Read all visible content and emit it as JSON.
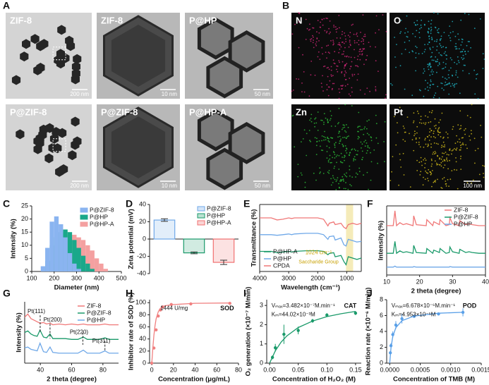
{
  "figure_a": {
    "panel": "A",
    "images": [
      {
        "label": "ZIF-8",
        "scale": "200 nm"
      },
      {
        "label": "ZIF-8",
        "scale": "10 nm"
      },
      {
        "label": "P@HP",
        "scale": "50 nm"
      },
      {
        "label": "P@ZIF-8",
        "scale": "200 nm"
      },
      {
        "label": "P@ZIF-8",
        "scale": "10 nm"
      },
      {
        "label": "P@HP-A",
        "scale": "50 nm"
      }
    ]
  },
  "figure_b": {
    "panel": "B",
    "images": [
      {
        "label": "N"
      },
      {
        "label": "O"
      },
      {
        "label": "Zn"
      },
      {
        "label": "Pt",
        "scale": "100 nm"
      }
    ]
  },
  "chart_data": [
    {
      "panel": "C",
      "type": "bar",
      "xlabel": "Diameter (nm)",
      "ylabel": "Intensity (%)",
      "x": [
        150,
        170,
        190,
        210,
        230,
        250,
        270,
        290,
        310,
        330,
        350,
        370,
        390,
        410,
        430
      ],
      "series": [
        {
          "name": "P@ZIF-8",
          "color": "#8ab4f0",
          "values": [
            2,
            9,
            19,
            21,
            18,
            13,
            7,
            3,
            1,
            null,
            null,
            null,
            null,
            null,
            null
          ]
        },
        {
          "name": "P@HP",
          "color": "#1aa88a",
          "values": [
            null,
            4,
            10,
            13,
            15,
            16,
            15,
            12,
            9,
            6,
            3,
            1,
            null,
            null,
            null
          ]
        },
        {
          "name": "P@HP-A",
          "color": "#f4a0a0",
          "values": [
            null,
            null,
            3,
            7,
            10,
            13,
            14,
            14,
            13,
            12,
            10,
            8,
            5,
            3,
            1
          ]
        }
      ],
      "xlim": [
        100,
        500
      ],
      "xticks": [
        100,
        200,
        300,
        400,
        500
      ],
      "ylim": [
        0,
        25
      ],
      "yticks": [
        0,
        5,
        10,
        15,
        20,
        25
      ],
      "legend": "upper right"
    },
    {
      "panel": "D",
      "type": "bar",
      "ylabel": "Zeta potential (mV)",
      "series": [
        {
          "name": "P@ZIF-8",
          "color": "#6fa8e8",
          "values": [
            22
          ],
          "errors": [
            1.5
          ]
        },
        {
          "name": "P@HP",
          "color": "#1a9a6a",
          "values": [
            -16
          ],
          "errors": [
            1
          ]
        },
        {
          "name": "P@HP-A",
          "color": "#f07070",
          "values": [
            -27
          ],
          "errors": [
            2.5
          ]
        }
      ],
      "ylim": [
        -40,
        40
      ],
      "yticks": [
        -40,
        -20,
        0,
        20,
        40
      ],
      "legend": "upper right"
    },
    {
      "panel": "E",
      "type": "line",
      "xlabel": "Wavelength (cm⁻¹)",
      "ylabel": "Transmittance (%)",
      "x": [
        4000,
        3600,
        3400,
        3200,
        3000,
        2900,
        2800,
        2400,
        2000,
        1800,
        1650,
        1600,
        1450,
        1400,
        1200,
        1100,
        1024,
        950,
        800,
        650,
        500
      ],
      "series": [
        {
          "name": "P@HP-A",
          "color": "#1a9a6a",
          "values": [
            30,
            30,
            28,
            29,
            30,
            29,
            30,
            31,
            31,
            30,
            25,
            27,
            28,
            22,
            24,
            15,
            10,
            22,
            20,
            18,
            20
          ]
        },
        {
          "name": "P@HP",
          "color": "#6fa8e8",
          "values": [
            55,
            55,
            54,
            55,
            56,
            55,
            56,
            57,
            57,
            55,
            48,
            52,
            53,
            47,
            50,
            40,
            38,
            48,
            46,
            44,
            45
          ]
        },
        {
          "name": "CPDA",
          "color": "#f07878",
          "values": [
            80,
            80,
            77,
            78,
            80,
            79,
            80,
            80,
            80,
            78,
            68,
            72,
            74,
            70,
            72,
            66,
            64,
            70,
            72,
            70,
            72
          ]
        }
      ],
      "xlim": [
        4000,
        500
      ],
      "xticks": [
        4000,
        3000,
        2000,
        1000
      ],
      "ylim": [
        0,
        100
      ],
      "legend": "lower left",
      "annotations": [
        "1024 cm⁻¹",
        "Saccharide Group"
      ]
    },
    {
      "panel": "F",
      "type": "line",
      "xlabel": "2 theta (degree)",
      "ylabel": "Intensity (%)",
      "x": [
        10,
        12,
        12.5,
        13,
        14,
        15,
        16,
        18,
        18.2,
        19,
        22,
        22.2,
        24,
        24.3,
        26,
        26.2,
        28,
        29,
        29.2,
        30,
        31,
        32,
        32.2,
        34,
        35,
        36,
        38,
        40
      ],
      "series": [
        {
          "name": "ZIF-8",
          "color": "#f07878",
          "values": [
            60,
            60,
            75,
            60,
            63,
            61,
            62,
            60,
            70,
            61,
            60,
            66,
            60,
            64,
            61,
            66,
            60,
            61,
            68,
            62,
            61,
            60,
            65,
            61,
            62,
            61,
            60,
            60
          ]
        },
        {
          "name": "P@ZIF-8",
          "color": "#1a9a6a",
          "values": [
            32,
            32,
            44,
            32,
            34.4,
            32.8,
            33.6,
            32,
            40,
            32.8,
            32,
            36.8,
            32,
            35.2,
            32.8,
            36.8,
            32,
            32.8,
            38.4,
            33.6,
            32.8,
            32,
            36,
            32.8,
            33.6,
            32.8,
            32,
            32
          ]
        },
        {
          "name": "P@HP",
          "color": "#6fa8e8",
          "values": [
            18,
            18,
            19,
            18,
            18,
            18,
            18,
            18,
            18.5,
            18,
            18,
            18,
            18,
            18,
            18,
            18,
            18,
            18,
            18.5,
            18,
            18,
            18,
            18,
            18,
            18,
            18,
            18,
            18
          ]
        }
      ],
      "xlim": [
        10,
        40
      ],
      "xticks": [
        10,
        20,
        30,
        40
      ],
      "ylim": [
        10,
        80
      ],
      "legend": "upper right"
    },
    {
      "panel": "G",
      "type": "line",
      "xlabel": "2 theta (degree)",
      "ylabel": "Intensity (%)",
      "x": [
        30,
        32,
        34,
        36,
        38,
        39.8,
        42,
        44,
        46.2,
        48,
        52,
        56,
        60,
        64,
        67.5,
        70,
        74,
        78,
        81.3,
        84,
        88,
        90
      ],
      "series": [
        {
          "name": "ZIF-8",
          "color": "#f07878",
          "values": [
            80,
            84,
            78,
            76,
            74,
            72,
            73,
            71,
            72,
            70,
            71,
            70,
            71,
            70,
            71,
            70,
            70,
            70,
            71,
            70,
            70,
            70
          ]
        },
        {
          "name": "P@ZIF-8",
          "color": "#1a9a6a",
          "values": [
            60,
            62,
            58,
            56,
            55,
            63,
            54,
            53,
            58,
            52,
            52,
            52,
            51,
            51,
            54,
            51,
            51,
            51,
            53,
            51,
            51,
            51
          ]
        },
        {
          "name": "P@HP",
          "color": "#6fa8e8",
          "values": [
            40,
            41,
            38,
            37,
            36,
            46,
            35,
            34,
            41,
            34,
            33,
            33,
            33,
            33,
            37,
            33,
            33,
            33,
            36,
            33,
            33,
            33
          ]
        }
      ],
      "xlim": [
        30,
        90
      ],
      "xticks": [
        40,
        60,
        80
      ],
      "ylim": [
        20,
        100
      ],
      "legend": "upper right",
      "annotations": [
        "Pt(111)",
        "Pt(200)",
        "Pt(220)",
        "Pt(311)"
      ]
    },
    {
      "panel": "H",
      "type": "scatter",
      "xlabel": "Concentration (μg/mL)",
      "ylabel": "Inhibitor rate of SOD (%)",
      "series": [
        {
          "mode": "line",
          "color": "#f08080",
          "x": [
            0,
            1,
            2,
            3,
            4,
            6,
            8,
            12,
            20,
            40,
            72
          ],
          "values": [
            0,
            25,
            46,
            62,
            73,
            85,
            91,
            95,
            97,
            99,
            99.5
          ]
        },
        {
          "mode": "points",
          "color": "#f08080",
          "x": [
            0,
            2,
            4,
            6,
            8,
            10,
            18,
            36,
            72
          ],
          "values": [
            0,
            25,
            55,
            78,
            88,
            93,
            97,
            98,
            99
          ]
        }
      ],
      "xlim": [
        -2,
        80
      ],
      "xticks": [
        0,
        20,
        40,
        60,
        80
      ],
      "ylim": [
        0,
        105
      ],
      "yticks": [
        0,
        20,
        40,
        60,
        80,
        100
      ],
      "annotations": [
        "1444 U/mg",
        "SOD"
      ]
    },
    {
      "panel": "I",
      "type": "scatter",
      "xlabel": "Concentration of H₂O₂ (M)",
      "ylabel": "O₂ generation (×10⁻⁷ M/min)",
      "series": [
        {
          "mode": "line",
          "color": "#1a9a6a",
          "x": [
            0,
            0.01,
            0.02,
            0.03,
            0.05,
            0.075,
            0.1,
            0.125,
            0.15
          ],
          "values": [
            0,
            0.64,
            1.09,
            1.41,
            1.85,
            2.19,
            2.42,
            2.57,
            2.69
          ]
        },
        {
          "mode": "points",
          "color": "#1a9a6a",
          "x": [
            0.005,
            0.01,
            0.025,
            0.05,
            0.075,
            0.1,
            0.15
          ],
          "values": [
            0.3,
            0.8,
            1.5,
            1.7,
            2.2,
            2.5,
            2.6
          ],
          "errors": [
            0.1,
            0.2,
            0.5,
            0.2,
            0.1,
            0.1,
            0.1
          ]
        }
      ],
      "xlim": [
        -0.005,
        0.16
      ],
      "xticks": [
        {
          "value": 0,
          "label": "0.00"
        },
        0.05,
        {
          "value": 0.1,
          "label": "0.10"
        },
        0.15
      ],
      "ylim": [
        0,
        3.3
      ],
      "yticks": [
        0,
        1,
        2,
        3
      ],
      "annotations": [
        "Vₘₐₓ=3.482×10⁻⁷M.min⁻¹",
        "Kₘ=44.02×10⁻³M",
        "CAT"
      ]
    },
    {
      "panel": "J",
      "type": "scatter",
      "xlabel": "Concentration of TMB (M)",
      "ylabel": "Reaction rate (×10⁻⁶ M/min)",
      "series": [
        {
          "mode": "line",
          "color": "#5aa0e8",
          "x": [
            0,
            2e-05,
            5e-05,
            0.0001,
            0.0002,
            0.0004,
            0.0008,
            0.0012
          ],
          "values": [
            0,
            1.92,
            3.35,
            4.47,
            5.35,
            5.94,
            6.29,
            6.41
          ]
        },
        {
          "mode": "points",
          "color": "#5aa0e8",
          "x": [
            1e-05,
            2e-05,
            5e-05,
            0.0001,
            0.0002,
            0.0004,
            0.0008,
            0.0012
          ],
          "values": [
            1.3,
            2.2,
            3.6,
            4.8,
            5.6,
            5.9,
            6.2,
            6.4
          ],
          "errors": [
            0.2,
            0.3,
            0.4,
            0.5,
            0.6,
            0.2,
            0.2,
            0.5
          ]
        }
      ],
      "xlim": [
        -5e-05,
        0.0015
      ],
      "xticks": [
        {
          "value": 0,
          "label": "0.0000"
        },
        0.0005,
        {
          "value": 0.001,
          "label": "0.0010"
        },
        {
          "value": 0.0015,
          "label": "0.0015"
        }
      ],
      "ylim": [
        0,
        8
      ],
      "yticks": [
        0,
        2,
        4,
        6,
        8
      ],
      "annotations": [
        "Vₘₐₓ=6.678×10⁻⁶M.min⁻¹",
        "Kₘ=4.953×10⁻⁵M",
        "POD"
      ]
    }
  ]
}
